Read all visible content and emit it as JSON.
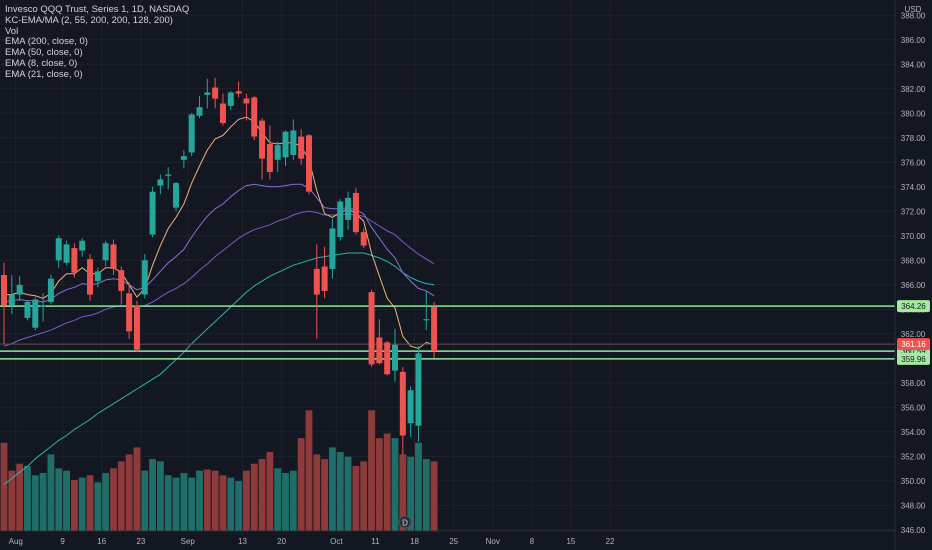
{
  "legend": {
    "title": "Invesco QQQ Trust, Series 1, 1D, NASDAQ",
    "lines": [
      "KC-EMA/MA (2, 55, 200, 200, 128, 200)",
      "Vol",
      "EMA (200, close, 0)",
      "EMA (50, close, 0)",
      "EMA (8, close, 0)",
      "EMA (21, close, 0)"
    ]
  },
  "currency_label": "USD",
  "event_marker": "D",
  "colors": {
    "background": "#131722",
    "up": "#26a69a",
    "down": "#ef5350",
    "vol_up": "#1f6f68",
    "vol_down": "#8d3a3b",
    "grid": "#1e222d",
    "axis_text": "#b2b5be",
    "level_line": "#8ce99a",
    "level_fill": "#a6e9a0",
    "ema200": "#2bb3a3",
    "ema50": "#6f60c9",
    "ema8": "#f2b27a",
    "ema21": "#8b6fd6"
  },
  "chart_data": {
    "type": "candlestick",
    "symbol": "Invesco QQQ Trust",
    "timeframe": "1D",
    "exchange": "NASDAQ",
    "ylim": [
      345.5,
      389
    ],
    "y_ticks": [
      346,
      348,
      350,
      352,
      354,
      356,
      358,
      360,
      362,
      364,
      366,
      368,
      370,
      372,
      374,
      376,
      378,
      380,
      382,
      384,
      386,
      388
    ],
    "y_tick_labels": [
      "346.00",
      "348.00",
      "350.00",
      "352.00",
      "354.00",
      "356.00",
      "358.00",
      "360.00",
      "362.00",
      "364.00",
      "366.00",
      "368.00",
      "370.00",
      "372.00",
      "374.00",
      "376.00",
      "378.00",
      "380.00",
      "382.00",
      "384.00",
      "386.00",
      "388.00"
    ],
    "x_ticks": [
      "Aug",
      "9",
      "16",
      "23",
      "Sep",
      "13",
      "20",
      "Oct",
      "11",
      "18",
      "25",
      "Nov",
      "8",
      "15",
      "22"
    ],
    "x_tick_index": [
      1.5,
      7.5,
      12.5,
      17.5,
      23.5,
      30.5,
      35.5,
      42.5,
      47.5,
      52.5,
      57.5,
      62.5,
      67.5,
      72.5,
      77.5
    ],
    "candles": [
      {
        "o": 366.8,
        "h": 367.8,
        "c": 364.3,
        "l": 361.2
      },
      {
        "o": 364.3,
        "h": 366.8,
        "c": 365.2,
        "l": 363.6
      },
      {
        "o": 365.2,
        "h": 366.7,
        "c": 366.0,
        "l": 364.7
      },
      {
        "o": 363.3,
        "h": 364.7,
        "c": 364.6,
        "l": 363.1
      },
      {
        "o": 362.5,
        "h": 365.0,
        "c": 364.8,
        "l": 362.3
      },
      {
        "o": 364.2,
        "h": 365.3,
        "c": 364.3,
        "l": 363.0
      },
      {
        "o": 364.6,
        "h": 366.8,
        "c": 366.5,
        "l": 364.4
      },
      {
        "o": 368.0,
        "h": 370.0,
        "c": 369.8,
        "l": 367.4
      },
      {
        "o": 367.8,
        "h": 369.6,
        "c": 369.3,
        "l": 367.6
      },
      {
        "o": 369.0,
        "h": 369.4,
        "c": 367.0,
        "l": 366.6
      },
      {
        "o": 368.8,
        "h": 369.8,
        "c": 369.6,
        "l": 368.3
      },
      {
        "o": 368.1,
        "h": 368.5,
        "c": 365.2,
        "l": 364.7
      },
      {
        "o": 366.3,
        "h": 367.4,
        "c": 367.1,
        "l": 365.8
      },
      {
        "o": 368.0,
        "h": 369.6,
        "c": 369.4,
        "l": 367.5
      },
      {
        "o": 369.3,
        "h": 369.7,
        "c": 367.3,
        "l": 366.8
      },
      {
        "o": 367.2,
        "h": 367.5,
        "c": 365.5,
        "l": 364.4
      },
      {
        "o": 365.3,
        "h": 366.2,
        "c": 362.2,
        "l": 361.6
      },
      {
        "o": 364.3,
        "h": 364.7,
        "c": 360.7,
        "l": 360.5
      },
      {
        "o": 365.2,
        "h": 368.5,
        "c": 368.0,
        "l": 364.9
      },
      {
        "o": 370.1,
        "h": 374.0,
        "c": 373.6,
        "l": 369.9
      },
      {
        "o": 374.1,
        "h": 375.0,
        "c": 374.6,
        "l": 373.4
      },
      {
        "o": 374.9,
        "h": 375.6,
        "c": 375.0,
        "l": 373.8
      },
      {
        "o": 372.3,
        "h": 374.4,
        "c": 374.3,
        "l": 372.0
      },
      {
        "o": 376.2,
        "h": 377.0,
        "c": 376.5,
        "l": 375.5
      },
      {
        "o": 376.8,
        "h": 380.0,
        "c": 379.9,
        "l": 376.5
      },
      {
        "o": 379.8,
        "h": 381.4,
        "c": 380.5,
        "l": 379.6
      },
      {
        "o": 381.5,
        "h": 382.8,
        "c": 381.7,
        "l": 380.4
      },
      {
        "o": 382.1,
        "h": 382.9,
        "c": 381.2,
        "l": 380.4
      },
      {
        "o": 380.8,
        "h": 381.6,
        "c": 379.2,
        "l": 379.0
      },
      {
        "o": 380.6,
        "h": 381.8,
        "c": 381.7,
        "l": 380.3
      },
      {
        "o": 381.8,
        "h": 382.6,
        "c": 381.6,
        "l": 381.3
      },
      {
        "o": 381.2,
        "h": 381.6,
        "c": 380.8,
        "l": 379.4
      },
      {
        "o": 381.3,
        "h": 381.4,
        "c": 378.1,
        "l": 377.8
      },
      {
        "o": 379.4,
        "h": 379.6,
        "c": 376.3,
        "l": 374.6
      },
      {
        "o": 377.5,
        "h": 379.0,
        "c": 375.2,
        "l": 374.6
      },
      {
        "o": 376.2,
        "h": 377.7,
        "c": 377.4,
        "l": 375.2
      },
      {
        "o": 376.4,
        "h": 378.6,
        "c": 378.5,
        "l": 375.7
      },
      {
        "o": 376.6,
        "h": 379.5,
        "c": 378.6,
        "l": 376.2
      },
      {
        "o": 378.1,
        "h": 378.7,
        "c": 376.3,
        "l": 375.8
      },
      {
        "o": 378.2,
        "h": 378.3,
        "c": 373.6,
        "l": 373.4
      },
      {
        "o": 367.3,
        "h": 369.3,
        "c": 365.2,
        "l": 361.6
      },
      {
        "o": 367.5,
        "h": 369.1,
        "c": 365.5,
        "l": 364.9
      },
      {
        "o": 367.3,
        "h": 371.4,
        "c": 370.6,
        "l": 366.5
      },
      {
        "o": 369.9,
        "h": 373.0,
        "c": 372.8,
        "l": 369.6
      },
      {
        "o": 371.3,
        "h": 373.6,
        "c": 373.1,
        "l": 370.5
      },
      {
        "o": 373.5,
        "h": 373.9,
        "c": 370.3,
        "l": 370.1
      },
      {
        "o": 370.3,
        "h": 370.6,
        "c": 369.2,
        "l": 369.0
      },
      {
        "o": 365.4,
        "h": 365.6,
        "c": 359.5,
        "l": 359.3
      },
      {
        "o": 361.7,
        "h": 363.2,
        "c": 359.6,
        "l": 359.5
      },
      {
        "o": 361.3,
        "h": 361.4,
        "c": 358.7,
        "l": 358.6
      },
      {
        "o": 359.0,
        "h": 362.4,
        "c": 361.1,
        "l": 358.1
      },
      {
        "o": 358.9,
        "h": 359.3,
        "c": 353.7,
        "l": 352.1
      },
      {
        "o": 354.7,
        "h": 357.7,
        "c": 357.4,
        "l": 353.6
      },
      {
        "o": 354.5,
        "h": 361.0,
        "c": 360.4,
        "l": 353.2
      },
      {
        "o": 363.1,
        "h": 365.5,
        "c": 363.2,
        "l": 362.3
      },
      {
        "o": 364.2,
        "h": 364.6,
        "c": 360.6,
        "l": 360.0
      }
    ],
    "volume": [
      {
        "v": 380,
        "up": false
      },
      {
        "v": 260,
        "up": false
      },
      {
        "v": 290,
        "up": false
      },
      {
        "v": 280,
        "up": true
      },
      {
        "v": 240,
        "up": true
      },
      {
        "v": 250,
        "up": true
      },
      {
        "v": 330,
        "up": true
      },
      {
        "v": 270,
        "up": true
      },
      {
        "v": 260,
        "up": true
      },
      {
        "v": 220,
        "up": false
      },
      {
        "v": 230,
        "up": true
      },
      {
        "v": 240,
        "up": false
      },
      {
        "v": 210,
        "up": true
      },
      {
        "v": 250,
        "up": true
      },
      {
        "v": 270,
        "up": false
      },
      {
        "v": 300,
        "up": false
      },
      {
        "v": 330,
        "up": false
      },
      {
        "v": 360,
        "up": false
      },
      {
        "v": 260,
        "up": true
      },
      {
        "v": 310,
        "up": true
      },
      {
        "v": 300,
        "up": true
      },
      {
        "v": 240,
        "up": true
      },
      {
        "v": 230,
        "up": true
      },
      {
        "v": 250,
        "up": true
      },
      {
        "v": 230,
        "up": true
      },
      {
        "v": 260,
        "up": true
      },
      {
        "v": 265,
        "up": false
      },
      {
        "v": 260,
        "up": false
      },
      {
        "v": 240,
        "up": false
      },
      {
        "v": 230,
        "up": true
      },
      {
        "v": 215,
        "up": true
      },
      {
        "v": 260,
        "up": false
      },
      {
        "v": 290,
        "up": false
      },
      {
        "v": 310,
        "up": false
      },
      {
        "v": 340,
        "up": false
      },
      {
        "v": 270,
        "up": true
      },
      {
        "v": 250,
        "up": true
      },
      {
        "v": 260,
        "up": true
      },
      {
        "v": 400,
        "up": false
      },
      {
        "v": 520,
        "up": false
      },
      {
        "v": 330,
        "up": false
      },
      {
        "v": 310,
        "up": false
      },
      {
        "v": 360,
        "up": true
      },
      {
        "v": 340,
        "up": true
      },
      {
        "v": 320,
        "up": true
      },
      {
        "v": 280,
        "up": false
      },
      {
        "v": 300,
        "up": false
      },
      {
        "v": 520,
        "up": false
      },
      {
        "v": 400,
        "up": false
      },
      {
        "v": 420,
        "up": false
      },
      {
        "v": 400,
        "up": true
      },
      {
        "v": 330,
        "up": false
      },
      {
        "v": 320,
        "up": true
      },
      {
        "v": 380,
        "up": true
      },
      {
        "v": 310,
        "up": true
      },
      {
        "v": 300,
        "up": false
      }
    ],
    "vol_max": 560,
    "ema8": [
      365.2,
      365.2,
      365.4,
      365.2,
      365.1,
      364.9,
      365.3,
      366.3,
      366.9,
      366.9,
      367.4,
      366.9,
      366.9,
      367.4,
      367.4,
      367.0,
      366.0,
      365.0,
      365.7,
      367.6,
      369.2,
      370.6,
      371.5,
      372.6,
      374.3,
      375.7,
      377.0,
      377.9,
      378.2,
      378.9,
      379.5,
      379.7,
      379.3,
      378.4,
      377.6,
      377.5,
      377.6,
      377.6,
      377.3,
      376.2,
      373.7,
      371.8,
      371.5,
      371.9,
      372.2,
      371.8,
      371.2,
      368.6,
      366.7,
      364.9,
      364.1,
      361.8,
      361.0,
      360.8,
      361.3,
      361.1
    ],
    "ema21": [
      364.6,
      364.7,
      364.8,
      364.7,
      364.7,
      364.6,
      364.8,
      365.3,
      365.6,
      365.8,
      366.1,
      366.0,
      366.1,
      366.4,
      366.5,
      366.4,
      366.0,
      365.6,
      365.8,
      366.4,
      367.1,
      367.8,
      368.3,
      368.9,
      369.9,
      370.8,
      371.6,
      372.2,
      372.6,
      373.2,
      373.7,
      374.1,
      374.2,
      374.1,
      374.0,
      374.0,
      374.1,
      374.2,
      374.2,
      373.9,
      373.1,
      372.3,
      372.2,
      372.2,
      372.3,
      372.1,
      371.8,
      370.7,
      369.8,
      368.9,
      368.2,
      367.0,
      366.3,
      365.7,
      365.5,
      365.1
    ],
    "ema50": [
      361.0,
      361.2,
      361.5,
      361.7,
      361.9,
      362.1,
      362.3,
      362.6,
      362.9,
      363.1,
      363.4,
      363.5,
      363.7,
      364.0,
      364.2,
      364.3,
      364.2,
      364.2,
      364.3,
      364.6,
      365.0,
      365.4,
      365.7,
      366.1,
      366.6,
      367.2,
      367.7,
      368.3,
      368.8,
      369.3,
      369.8,
      370.2,
      370.5,
      370.7,
      370.9,
      371.2,
      371.4,
      371.7,
      371.9,
      372.0,
      371.9,
      371.7,
      371.7,
      371.7,
      371.8,
      371.7,
      371.6,
      371.2,
      370.8,
      370.4,
      370.1,
      369.5,
      369.0,
      368.5,
      368.1,
      367.7
    ],
    "ema200": [
      349.7,
      350.2,
      350.7,
      351.2,
      351.8,
      352.3,
      352.8,
      353.3,
      353.7,
      354.2,
      354.6,
      355.0,
      355.5,
      355.9,
      356.3,
      356.7,
      357.1,
      357.5,
      357.9,
      358.3,
      358.7,
      359.3,
      359.9,
      360.5,
      361.2,
      361.8,
      362.4,
      363.0,
      363.6,
      364.2,
      364.8,
      365.4,
      365.9,
      366.3,
      366.7,
      367.0,
      367.3,
      367.6,
      367.8,
      368.0,
      368.2,
      368.3,
      368.4,
      368.5,
      368.6,
      368.6,
      368.6,
      368.4,
      368.2,
      367.9,
      367.5,
      367.0,
      366.6,
      366.3,
      366.1,
      366.0
    ],
    "levels": [
      {
        "price": 364.26,
        "label": "364.26",
        "style": "line"
      },
      {
        "price": 360.59,
        "label": "360.59",
        "style": "line"
      },
      {
        "price": 359.96,
        "label": "359.96",
        "style": "line"
      }
    ],
    "last_price": {
      "price": 361.16,
      "label": "361.16"
    }
  }
}
